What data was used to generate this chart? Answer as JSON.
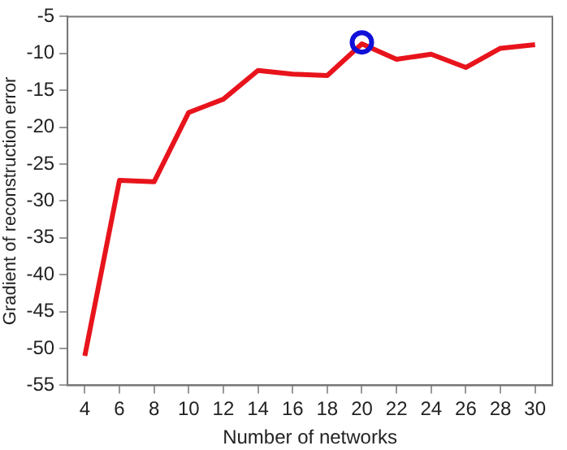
{
  "chart_data": {
    "type": "line",
    "xlabel": "Number of networks",
    "ylabel": "Gradient of reconstruction error",
    "x": [
      4,
      6,
      8,
      10,
      12,
      14,
      16,
      18,
      20,
      22,
      24,
      26,
      28,
      30
    ],
    "series": [
      {
        "color": "#e8141c",
        "values": [
          -51,
          -27.2,
          -27.4,
          -18,
          -16.2,
          -12.3,
          -12.8,
          -13,
          -8.7,
          -10.8,
          -10.1,
          -11.9,
          -9.3,
          -8.8
        ]
      },
      {
        "type": "scatter",
        "color": "#1010d8",
        "marker": "circle",
        "x": [
          20
        ],
        "values": [
          -8.5
        ]
      }
    ],
    "xlim": [
      3,
      31
    ],
    "xticks": [
      4,
      6,
      8,
      10,
      12,
      14,
      16,
      18,
      20,
      22,
      24,
      26,
      28,
      30
    ],
    "ylim": [
      -55,
      -5
    ],
    "yticks": [
      -55,
      -50,
      -45,
      -40,
      -35,
      -30,
      -25,
      -20,
      -15,
      -10,
      -5
    ],
    "grid": false,
    "legend": false,
    "marker": "none",
    "line_style": "solid"
  }
}
